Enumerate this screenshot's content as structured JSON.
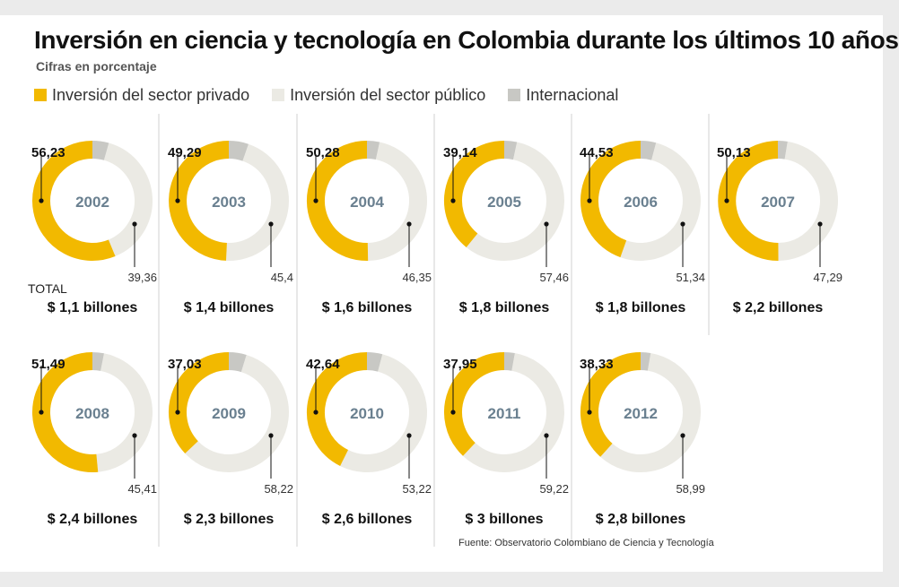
{
  "header": {
    "title": "Inversión en ciencia y tecnología en Colombia durante los últimos 10 años",
    "subtitle": "Cifras en porcentaje"
  },
  "legend": [
    {
      "label": "Inversión del sector privado",
      "color": "#f2b900"
    },
    {
      "label": "Inversión del sector público",
      "color": "#ebeae4"
    },
    {
      "label": "Internacional",
      "color": "#c8c8c4"
    }
  ],
  "total_label": "TOTAL",
  "source": "Fuente: Observatorio Colombiano de Ciencia y Tecnología",
  "chart_data": {
    "type": "donut",
    "series_names": [
      "Inversión del sector privado",
      "Inversión del sector público",
      "Internacional"
    ],
    "items": [
      {
        "year": "2002",
        "private": 56.23,
        "private_label": "56,23",
        "public": 39.36,
        "public_label": "39,36",
        "total": "$ 1,1 billones"
      },
      {
        "year": "2003",
        "private": 49.29,
        "private_label": "49,29",
        "public": 45.4,
        "public_label": "45,4",
        "total": "$ 1,4 billones"
      },
      {
        "year": "2004",
        "private": 50.28,
        "private_label": "50,28",
        "public": 46.35,
        "public_label": "46,35",
        "total": "$ 1,6 billones"
      },
      {
        "year": "2005",
        "private": 39.14,
        "private_label": "39,14",
        "public": 57.46,
        "public_label": "57,46",
        "total": "$ 1,8 billones"
      },
      {
        "year": "2006",
        "private": 44.53,
        "private_label": "44,53",
        "public": 51.34,
        "public_label": "51,34",
        "total": "$ 1,8 billones"
      },
      {
        "year": "2007",
        "private": 50.13,
        "private_label": "50,13",
        "public": 47.29,
        "public_label": "47,29",
        "total": "$ 2,2 billones"
      },
      {
        "year": "2008",
        "private": 51.49,
        "private_label": "51,49",
        "public": 45.41,
        "public_label": "45,41",
        "total": "$ 2,4 billones"
      },
      {
        "year": "2009",
        "private": 37.03,
        "private_label": "37,03",
        "public": 58.22,
        "public_label": "58,22",
        "total": "$ 2,3 billones"
      },
      {
        "year": "2010",
        "private": 42.64,
        "private_label": "42,64",
        "public": 53.22,
        "public_label": "53,22",
        "total": "$ 2,6 billones"
      },
      {
        "year": "2011",
        "private": 37.95,
        "private_label": "37,95",
        "public": 59.22,
        "public_label": "59,22",
        "total": "$ 3 billones"
      },
      {
        "year": "2012",
        "private": 38.33,
        "private_label": "38,33",
        "public": 58.99,
        "public_label": "58,99",
        "total": "$ 2,8 billones"
      }
    ]
  }
}
